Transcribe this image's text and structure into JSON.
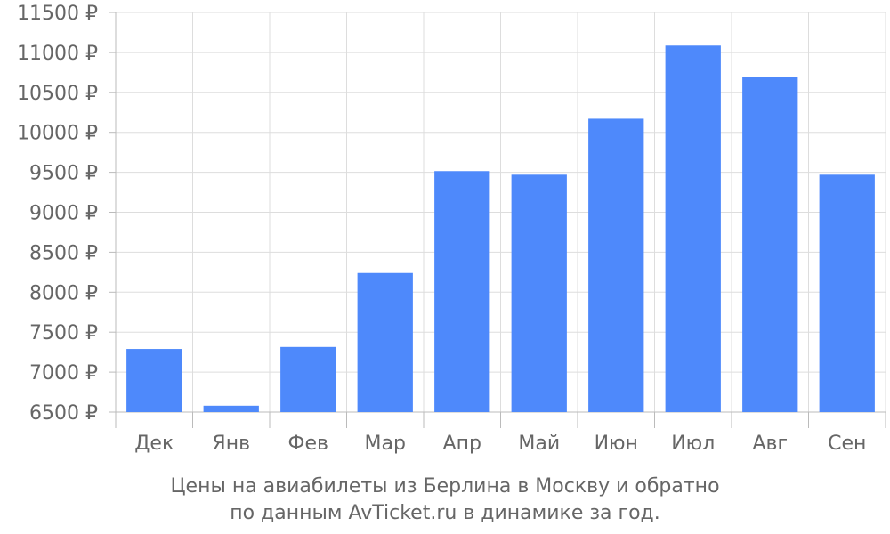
{
  "chart_data": {
    "type": "bar",
    "categories": [
      "Дек",
      "Янв",
      "Фев",
      "Мар",
      "Апр",
      "Май",
      "Июн",
      "Июл",
      "Авг",
      "Сен"
    ],
    "values": [
      7290,
      6580,
      7315,
      8240,
      9515,
      9470,
      10170,
      11085,
      10690,
      9470
    ],
    "ylim": [
      6500,
      11500
    ],
    "yticks": [
      6500,
      7000,
      7500,
      8000,
      8500,
      9000,
      9500,
      10000,
      10500,
      11000,
      11500
    ],
    "ytick_labels": [
      "6500 ₽",
      "7000 ₽",
      "7500 ₽",
      "8000 ₽",
      "8500 ₽",
      "9000 ₽",
      "9500 ₽",
      "10000 ₽",
      "10500 ₽",
      "11000 ₽",
      "11500 ₽"
    ],
    "bar_color": "#4e89fb",
    "grid": true,
    "caption_line1": "Цены на авиабилеты из Берлина в Москву и обратно",
    "caption_line2": "по данным AvTicket.ru в динамике за год."
  }
}
